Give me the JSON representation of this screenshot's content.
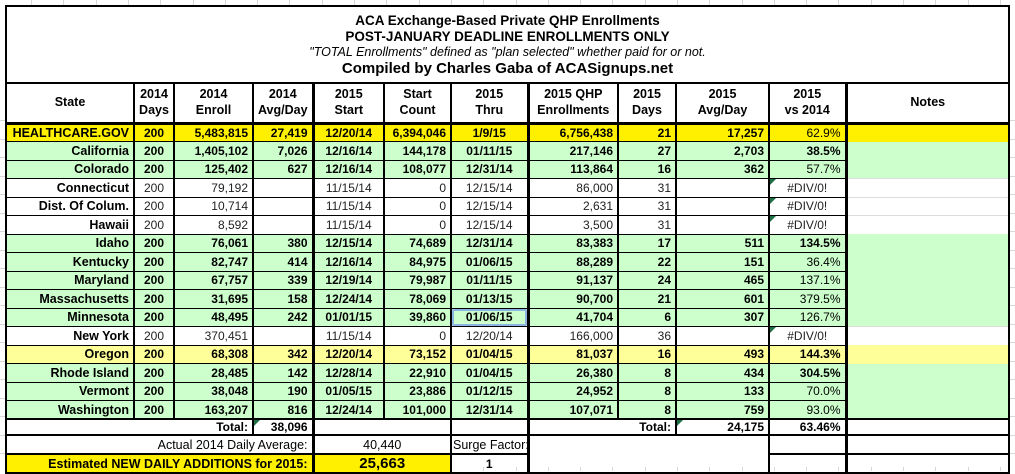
{
  "title": {
    "line1": "ACA Exchange-Based Private QHP Enrollments",
    "line2": "POST-JANUARY DEADLINE ENROLLMENTS ONLY",
    "line3": "\"TOTAL Enrollments\" defined as \"plan selected\" whether paid for or not.",
    "line4": "Compiled by Charles Gaba of ACASignups.net"
  },
  "columns": [
    {
      "l1": "State",
      "l2": ""
    },
    {
      "l1": "2014",
      "l2": "Days"
    },
    {
      "l1": "2014",
      "l2": "Enroll"
    },
    {
      "l1": "2014",
      "l2": "Avg/Day"
    },
    {
      "l1": "2015",
      "l2": "Start"
    },
    {
      "l1": "Start",
      "l2": "Count"
    },
    {
      "l1": "2015",
      "l2": "Thru"
    },
    {
      "l1": "2015 QHP",
      "l2": "Enrollments"
    },
    {
      "l1": "2015",
      "l2": "Days"
    },
    {
      "l1": "2015",
      "l2": "Avg/Day"
    },
    {
      "l1": "2015",
      "l2": "vs 2014"
    },
    {
      "l1": "Notes",
      "l2": ""
    }
  ],
  "colors": {
    "highlight_yellow": "#FFF000",
    "row_green": "#CCFFCC",
    "row_pale_yellow": "#FFFF99",
    "error_marker_green": "#1E7145",
    "selection_blue": "#8DB4E2"
  },
  "rows": [
    {
      "state": "HEALTHCARE.GOV",
      "days_2014": "200",
      "enroll_2014": "5,483,815",
      "avg_2014": "27,419",
      "start_2015": "12/20/14",
      "start_count": "6,394,046",
      "thru_2015": "1/9/15",
      "qhp_2015": "6,756,438",
      "days_2015": "21",
      "avg_2015": "17,257",
      "vs_2014": "62.9%",
      "notes": "",
      "bg": "yellow",
      "vs_bold": false,
      "error": false,
      "selected_cell": null
    },
    {
      "state": "California",
      "days_2014": "200",
      "enroll_2014": "1,405,102",
      "avg_2014": "7,026",
      "start_2015": "12/16/14",
      "start_count": "144,178",
      "thru_2015": "01/11/15",
      "qhp_2015": "217,146",
      "days_2015": "27",
      "avg_2015": "2,703",
      "vs_2014": "38.5%",
      "notes": "",
      "bg": "green",
      "vs_bold": true,
      "error": false,
      "selected_cell": null
    },
    {
      "state": "Colorado",
      "days_2014": "200",
      "enroll_2014": "125,402",
      "avg_2014": "627",
      "start_2015": "12/16/14",
      "start_count": "108,077",
      "thru_2015": "12/31/14",
      "qhp_2015": "113,864",
      "days_2015": "16",
      "avg_2015": "362",
      "vs_2014": "57.7%",
      "notes": "",
      "bg": "green",
      "vs_bold": false,
      "error": false,
      "selected_cell": null
    },
    {
      "state": "Connecticut",
      "days_2014": "200",
      "enroll_2014": "79,192",
      "avg_2014": "",
      "start_2015": "11/15/14",
      "start_count": "0",
      "thru_2015": "12/15/14",
      "qhp_2015": "86,000",
      "days_2015": "31",
      "avg_2015": "",
      "vs_2014": "#DIV/0!",
      "notes": "",
      "bg": "white",
      "vs_bold": false,
      "error": true,
      "selected_cell": null
    },
    {
      "state": "Dist. Of Colum.",
      "days_2014": "200",
      "enroll_2014": "10,714",
      "avg_2014": "",
      "start_2015": "11/15/14",
      "start_count": "0",
      "thru_2015": "12/15/14",
      "qhp_2015": "2,631",
      "days_2015": "31",
      "avg_2015": "",
      "vs_2014": "#DIV/0!",
      "notes": "",
      "bg": "white",
      "vs_bold": false,
      "error": true,
      "selected_cell": null
    },
    {
      "state": "Hawaii",
      "days_2014": "200",
      "enroll_2014": "8,592",
      "avg_2014": "",
      "start_2015": "11/15/14",
      "start_count": "0",
      "thru_2015": "12/15/14",
      "qhp_2015": "3,500",
      "days_2015": "31",
      "avg_2015": "",
      "vs_2014": "#DIV/0!",
      "notes": "",
      "bg": "white",
      "vs_bold": false,
      "error": true,
      "selected_cell": null
    },
    {
      "state": "Idaho",
      "days_2014": "200",
      "enroll_2014": "76,061",
      "avg_2014": "380",
      "start_2015": "12/15/14",
      "start_count": "74,689",
      "thru_2015": "12/31/14",
      "qhp_2015": "83,383",
      "days_2015": "17",
      "avg_2015": "511",
      "vs_2014": "134.5%",
      "notes": "",
      "bg": "green",
      "vs_bold": true,
      "error": false,
      "selected_cell": null
    },
    {
      "state": "Kentucky",
      "days_2014": "200",
      "enroll_2014": "82,747",
      "avg_2014": "414",
      "start_2015": "12/16/14",
      "start_count": "84,975",
      "thru_2015": "01/06/15",
      "qhp_2015": "88,289",
      "days_2015": "22",
      "avg_2015": "151",
      "vs_2014": "36.4%",
      "notes": "",
      "bg": "green",
      "vs_bold": false,
      "error": false,
      "selected_cell": null
    },
    {
      "state": "Maryland",
      "days_2014": "200",
      "enroll_2014": "67,757",
      "avg_2014": "339",
      "start_2015": "12/19/14",
      "start_count": "79,987",
      "thru_2015": "01/11/15",
      "qhp_2015": "91,137",
      "days_2015": "24",
      "avg_2015": "465",
      "vs_2014": "137.1%",
      "notes": "",
      "bg": "green",
      "vs_bold": false,
      "error": false,
      "selected_cell": null
    },
    {
      "state": "Massachusetts",
      "days_2014": "200",
      "enroll_2014": "31,695",
      "avg_2014": "158",
      "start_2015": "12/24/14",
      "start_count": "78,069",
      "thru_2015": "01/13/15",
      "qhp_2015": "90,700",
      "days_2015": "21",
      "avg_2015": "601",
      "vs_2014": "379.5%",
      "notes": "",
      "bg": "green",
      "vs_bold": false,
      "error": false,
      "selected_cell": null
    },
    {
      "state": "Minnesota",
      "days_2014": "200",
      "enroll_2014": "48,495",
      "avg_2014": "242",
      "start_2015": "01/01/15",
      "start_count": "39,860",
      "thru_2015": "01/06/15",
      "qhp_2015": "41,704",
      "days_2015": "6",
      "avg_2015": "307",
      "vs_2014": "126.7%",
      "notes": "",
      "bg": "green",
      "vs_bold": false,
      "error": false,
      "selected_cell": "thru_2015"
    },
    {
      "state": "New York",
      "days_2014": "200",
      "enroll_2014": "370,451",
      "avg_2014": "",
      "start_2015": "11/15/14",
      "start_count": "0",
      "thru_2015": "12/20/14",
      "qhp_2015": "166,000",
      "days_2015": "36",
      "avg_2015": "",
      "vs_2014": "#DIV/0!",
      "notes": "",
      "bg": "white",
      "vs_bold": false,
      "error": true,
      "selected_cell": null
    },
    {
      "state": "Oregon",
      "days_2014": "200",
      "enroll_2014": "68,308",
      "avg_2014": "342",
      "start_2015": "12/20/14",
      "start_count": "73,152",
      "thru_2015": "01/04/15",
      "qhp_2015": "81,037",
      "days_2015": "16",
      "avg_2015": "493",
      "vs_2014": "144.3%",
      "notes": "",
      "bg": "pale",
      "vs_bold": true,
      "error": false,
      "selected_cell": null
    },
    {
      "state": "Rhode Island",
      "days_2014": "200",
      "enroll_2014": "28,485",
      "avg_2014": "142",
      "start_2015": "12/28/14",
      "start_count": "22,910",
      "thru_2015": "01/04/15",
      "qhp_2015": "26,380",
      "days_2015": "8",
      "avg_2015": "434",
      "vs_2014": "304.5%",
      "notes": "",
      "bg": "green",
      "vs_bold": true,
      "error": false,
      "selected_cell": null
    },
    {
      "state": "Vermont",
      "days_2014": "200",
      "enroll_2014": "38,048",
      "avg_2014": "190",
      "start_2015": "01/05/15",
      "start_count": "23,886",
      "thru_2015": "01/12/15",
      "qhp_2015": "24,952",
      "days_2015": "8",
      "avg_2015": "133",
      "vs_2014": "70.0%",
      "notes": "",
      "bg": "green",
      "vs_bold": false,
      "error": false,
      "selected_cell": null
    },
    {
      "state": "Washington",
      "days_2014": "200",
      "enroll_2014": "163,207",
      "avg_2014": "816",
      "start_2015": "12/24/14",
      "start_count": "101,000",
      "thru_2015": "12/31/14",
      "qhp_2015": "107,071",
      "days_2015": "8",
      "avg_2015": "759",
      "vs_2014": "93.0%",
      "notes": "",
      "bg": "green",
      "vs_bold": false,
      "error": false,
      "selected_cell": null
    }
  ],
  "totals": {
    "label_2014": "Total:",
    "avg_day_2014": "38,096",
    "label_2015": "Total:",
    "avg_day_2015": "24,175",
    "vs_2014": "63.46%"
  },
  "footer": {
    "actual_2014_label": "Actual 2014 Daily Average:",
    "actual_2014_value": "40,440",
    "surge_factor_label": "Surge Factor:",
    "surge_factor_value": "1",
    "estimate_label": "Estimated NEW DAILY ADDITIONS for 2015:",
    "estimate_value": "25,663"
  }
}
